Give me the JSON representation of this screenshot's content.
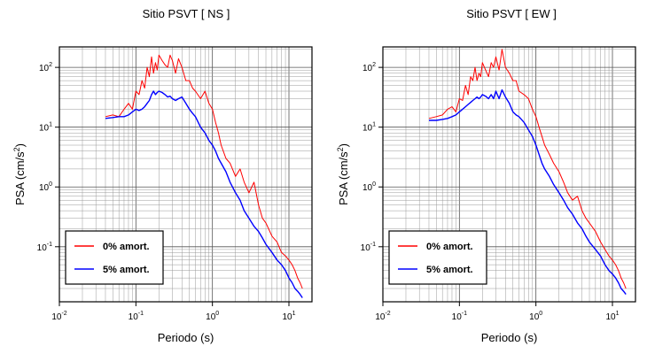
{
  "chart_data": [
    {
      "type": "line",
      "title": "Sitio PSVT [ NS ]",
      "xlabel": "Periodo (s)",
      "ylabel_base": "PSA (cm/s",
      "ylabel_exp": "2",
      "ylabel_tail": ")",
      "xscale": "log",
      "yscale": "log",
      "xlim": [
        0.01,
        20
      ],
      "ylim": [
        0.012,
        220
      ],
      "x_ticks": [
        {
          "base": "10",
          "exp": "-2"
        },
        {
          "base": "10",
          "exp": "-1"
        },
        {
          "base": "10",
          "exp": "0"
        },
        {
          "base": "10",
          "exp": "1"
        }
      ],
      "y_ticks": [
        {
          "base": "10",
          "exp": "-1"
        },
        {
          "base": "10",
          "exp": "0"
        },
        {
          "base": "10",
          "exp": "1"
        },
        {
          "base": "10",
          "exp": "2"
        }
      ],
      "grid": true,
      "legend_position": "bottom-left",
      "series": [
        {
          "name": "0% amort.",
          "color": "#ff0000",
          "x": [
            0.04,
            0.05,
            0.06,
            0.07,
            0.08,
            0.09,
            0.1,
            0.11,
            0.12,
            0.13,
            0.14,
            0.15,
            0.16,
            0.17,
            0.18,
            0.19,
            0.2,
            0.22,
            0.24,
            0.26,
            0.28,
            0.3,
            0.33,
            0.36,
            0.4,
            0.45,
            0.5,
            0.55,
            0.6,
            0.7,
            0.8,
            0.9,
            1.0,
            1.1,
            1.2,
            1.3,
            1.5,
            1.7,
            2.0,
            2.3,
            2.6,
            3.0,
            3.5,
            4.0,
            4.5,
            5.0,
            6.0,
            7.0,
            8.0,
            9.0,
            10,
            11,
            12,
            13,
            14,
            15
          ],
          "y": [
            15,
            16,
            15,
            20,
            25,
            20,
            40,
            35,
            60,
            45,
            100,
            70,
            150,
            80,
            120,
            90,
            160,
            130,
            110,
            100,
            160,
            130,
            80,
            140,
            100,
            60,
            60,
            45,
            40,
            30,
            40,
            25,
            20,
            12,
            8,
            5,
            3,
            2.5,
            1.5,
            2,
            1.2,
            0.8,
            1.2,
            0.5,
            0.3,
            0.25,
            0.15,
            0.12,
            0.08,
            0.07,
            0.06,
            0.05,
            0.04,
            0.03,
            0.025,
            0.02
          ]
        },
        {
          "name": "5% amort.",
          "color": "#0000ff",
          "x": [
            0.04,
            0.05,
            0.06,
            0.07,
            0.08,
            0.09,
            0.1,
            0.11,
            0.12,
            0.13,
            0.14,
            0.15,
            0.16,
            0.17,
            0.18,
            0.19,
            0.2,
            0.22,
            0.24,
            0.26,
            0.28,
            0.3,
            0.33,
            0.36,
            0.4,
            0.45,
            0.5,
            0.55,
            0.6,
            0.7,
            0.8,
            0.9,
            1.0,
            1.1,
            1.2,
            1.3,
            1.5,
            1.7,
            2.0,
            2.3,
            2.6,
            3.0,
            3.5,
            4.0,
            4.5,
            5.0,
            6.0,
            7.0,
            8.0,
            9.0,
            10,
            11,
            12,
            13,
            14,
            15
          ],
          "y": [
            14,
            14.5,
            15,
            15,
            16,
            18,
            20,
            19,
            20,
            22,
            25,
            28,
            35,
            40,
            35,
            38,
            40,
            38,
            35,
            32,
            33,
            30,
            28,
            30,
            32,
            25,
            20,
            17,
            15,
            10,
            8,
            6,
            5,
            4,
            3,
            2.5,
            1.8,
            1.2,
            0.8,
            0.6,
            0.4,
            0.3,
            0.22,
            0.18,
            0.14,
            0.11,
            0.08,
            0.06,
            0.05,
            0.04,
            0.03,
            0.025,
            0.02,
            0.018,
            0.016,
            0.014
          ]
        }
      ],
      "legend_entries": [
        "0% amort.",
        "5% amort."
      ]
    },
    {
      "type": "line",
      "title": "Sitio PSVT [ EW ]",
      "xlabel": "Periodo (s)",
      "ylabel_base": "PSA (cm/s",
      "ylabel_exp": "2",
      "ylabel_tail": ")",
      "xscale": "log",
      "yscale": "log",
      "xlim": [
        0.01,
        20
      ],
      "ylim": [
        0.012,
        220
      ],
      "x_ticks": [
        {
          "base": "10",
          "exp": "-2"
        },
        {
          "base": "10",
          "exp": "-1"
        },
        {
          "base": "10",
          "exp": "0"
        },
        {
          "base": "10",
          "exp": "1"
        }
      ],
      "y_ticks": [
        {
          "base": "10",
          "exp": "-1"
        },
        {
          "base": "10",
          "exp": "0"
        },
        {
          "base": "10",
          "exp": "1"
        },
        {
          "base": "10",
          "exp": "2"
        }
      ],
      "grid": true,
      "legend_position": "bottom-left",
      "series": [
        {
          "name": "0% amort.",
          "color": "#ff0000",
          "x": [
            0.04,
            0.05,
            0.06,
            0.07,
            0.08,
            0.09,
            0.1,
            0.11,
            0.12,
            0.13,
            0.14,
            0.15,
            0.16,
            0.17,
            0.18,
            0.19,
            0.2,
            0.22,
            0.24,
            0.26,
            0.28,
            0.3,
            0.33,
            0.36,
            0.4,
            0.45,
            0.5,
            0.55,
            0.6,
            0.7,
            0.8,
            0.9,
            1.0,
            1.1,
            1.2,
            1.3,
            1.5,
            1.7,
            2.0,
            2.3,
            2.6,
            3.0,
            3.5,
            4.0,
            4.5,
            5.0,
            6.0,
            7.0,
            8.0,
            9.0,
            10,
            11,
            12,
            13,
            14,
            15
          ],
          "y": [
            14,
            15,
            16,
            20,
            22,
            18,
            30,
            28,
            50,
            35,
            70,
            60,
            100,
            60,
            80,
            70,
            120,
            90,
            70,
            120,
            100,
            150,
            90,
            200,
            100,
            80,
            60,
            60,
            40,
            35,
            30,
            20,
            15,
            10,
            7,
            5,
            3.5,
            2.5,
            1.8,
            1.2,
            0.8,
            0.6,
            0.7,
            0.4,
            0.3,
            0.25,
            0.18,
            0.12,
            0.09,
            0.07,
            0.06,
            0.05,
            0.04,
            0.03,
            0.025,
            0.02
          ]
        },
        {
          "name": "5% amort.",
          "color": "#0000ff",
          "x": [
            0.04,
            0.05,
            0.06,
            0.07,
            0.08,
            0.09,
            0.1,
            0.11,
            0.12,
            0.13,
            0.14,
            0.15,
            0.16,
            0.17,
            0.18,
            0.19,
            0.2,
            0.22,
            0.24,
            0.26,
            0.28,
            0.3,
            0.33,
            0.36,
            0.4,
            0.45,
            0.5,
            0.55,
            0.6,
            0.7,
            0.8,
            0.9,
            1.0,
            1.1,
            1.2,
            1.3,
            1.5,
            1.7,
            2.0,
            2.3,
            2.6,
            3.0,
            3.5,
            4.0,
            4.5,
            5.0,
            6.0,
            7.0,
            8.0,
            9.0,
            10,
            11,
            12,
            13,
            14,
            15
          ],
          "y": [
            13,
            13,
            13.5,
            14,
            15,
            16,
            18,
            20,
            22,
            24,
            26,
            28,
            30,
            32,
            30,
            32,
            35,
            33,
            30,
            35,
            30,
            40,
            30,
            42,
            32,
            25,
            18,
            16,
            15,
            12,
            9,
            7,
            5,
            3.5,
            2.5,
            2,
            1.5,
            1.1,
            0.8,
            0.6,
            0.45,
            0.35,
            0.25,
            0.2,
            0.15,
            0.12,
            0.09,
            0.07,
            0.05,
            0.04,
            0.035,
            0.03,
            0.025,
            0.02,
            0.018,
            0.016
          ]
        }
      ],
      "legend_entries": [
        "0% amort.",
        "5% amort."
      ]
    }
  ]
}
